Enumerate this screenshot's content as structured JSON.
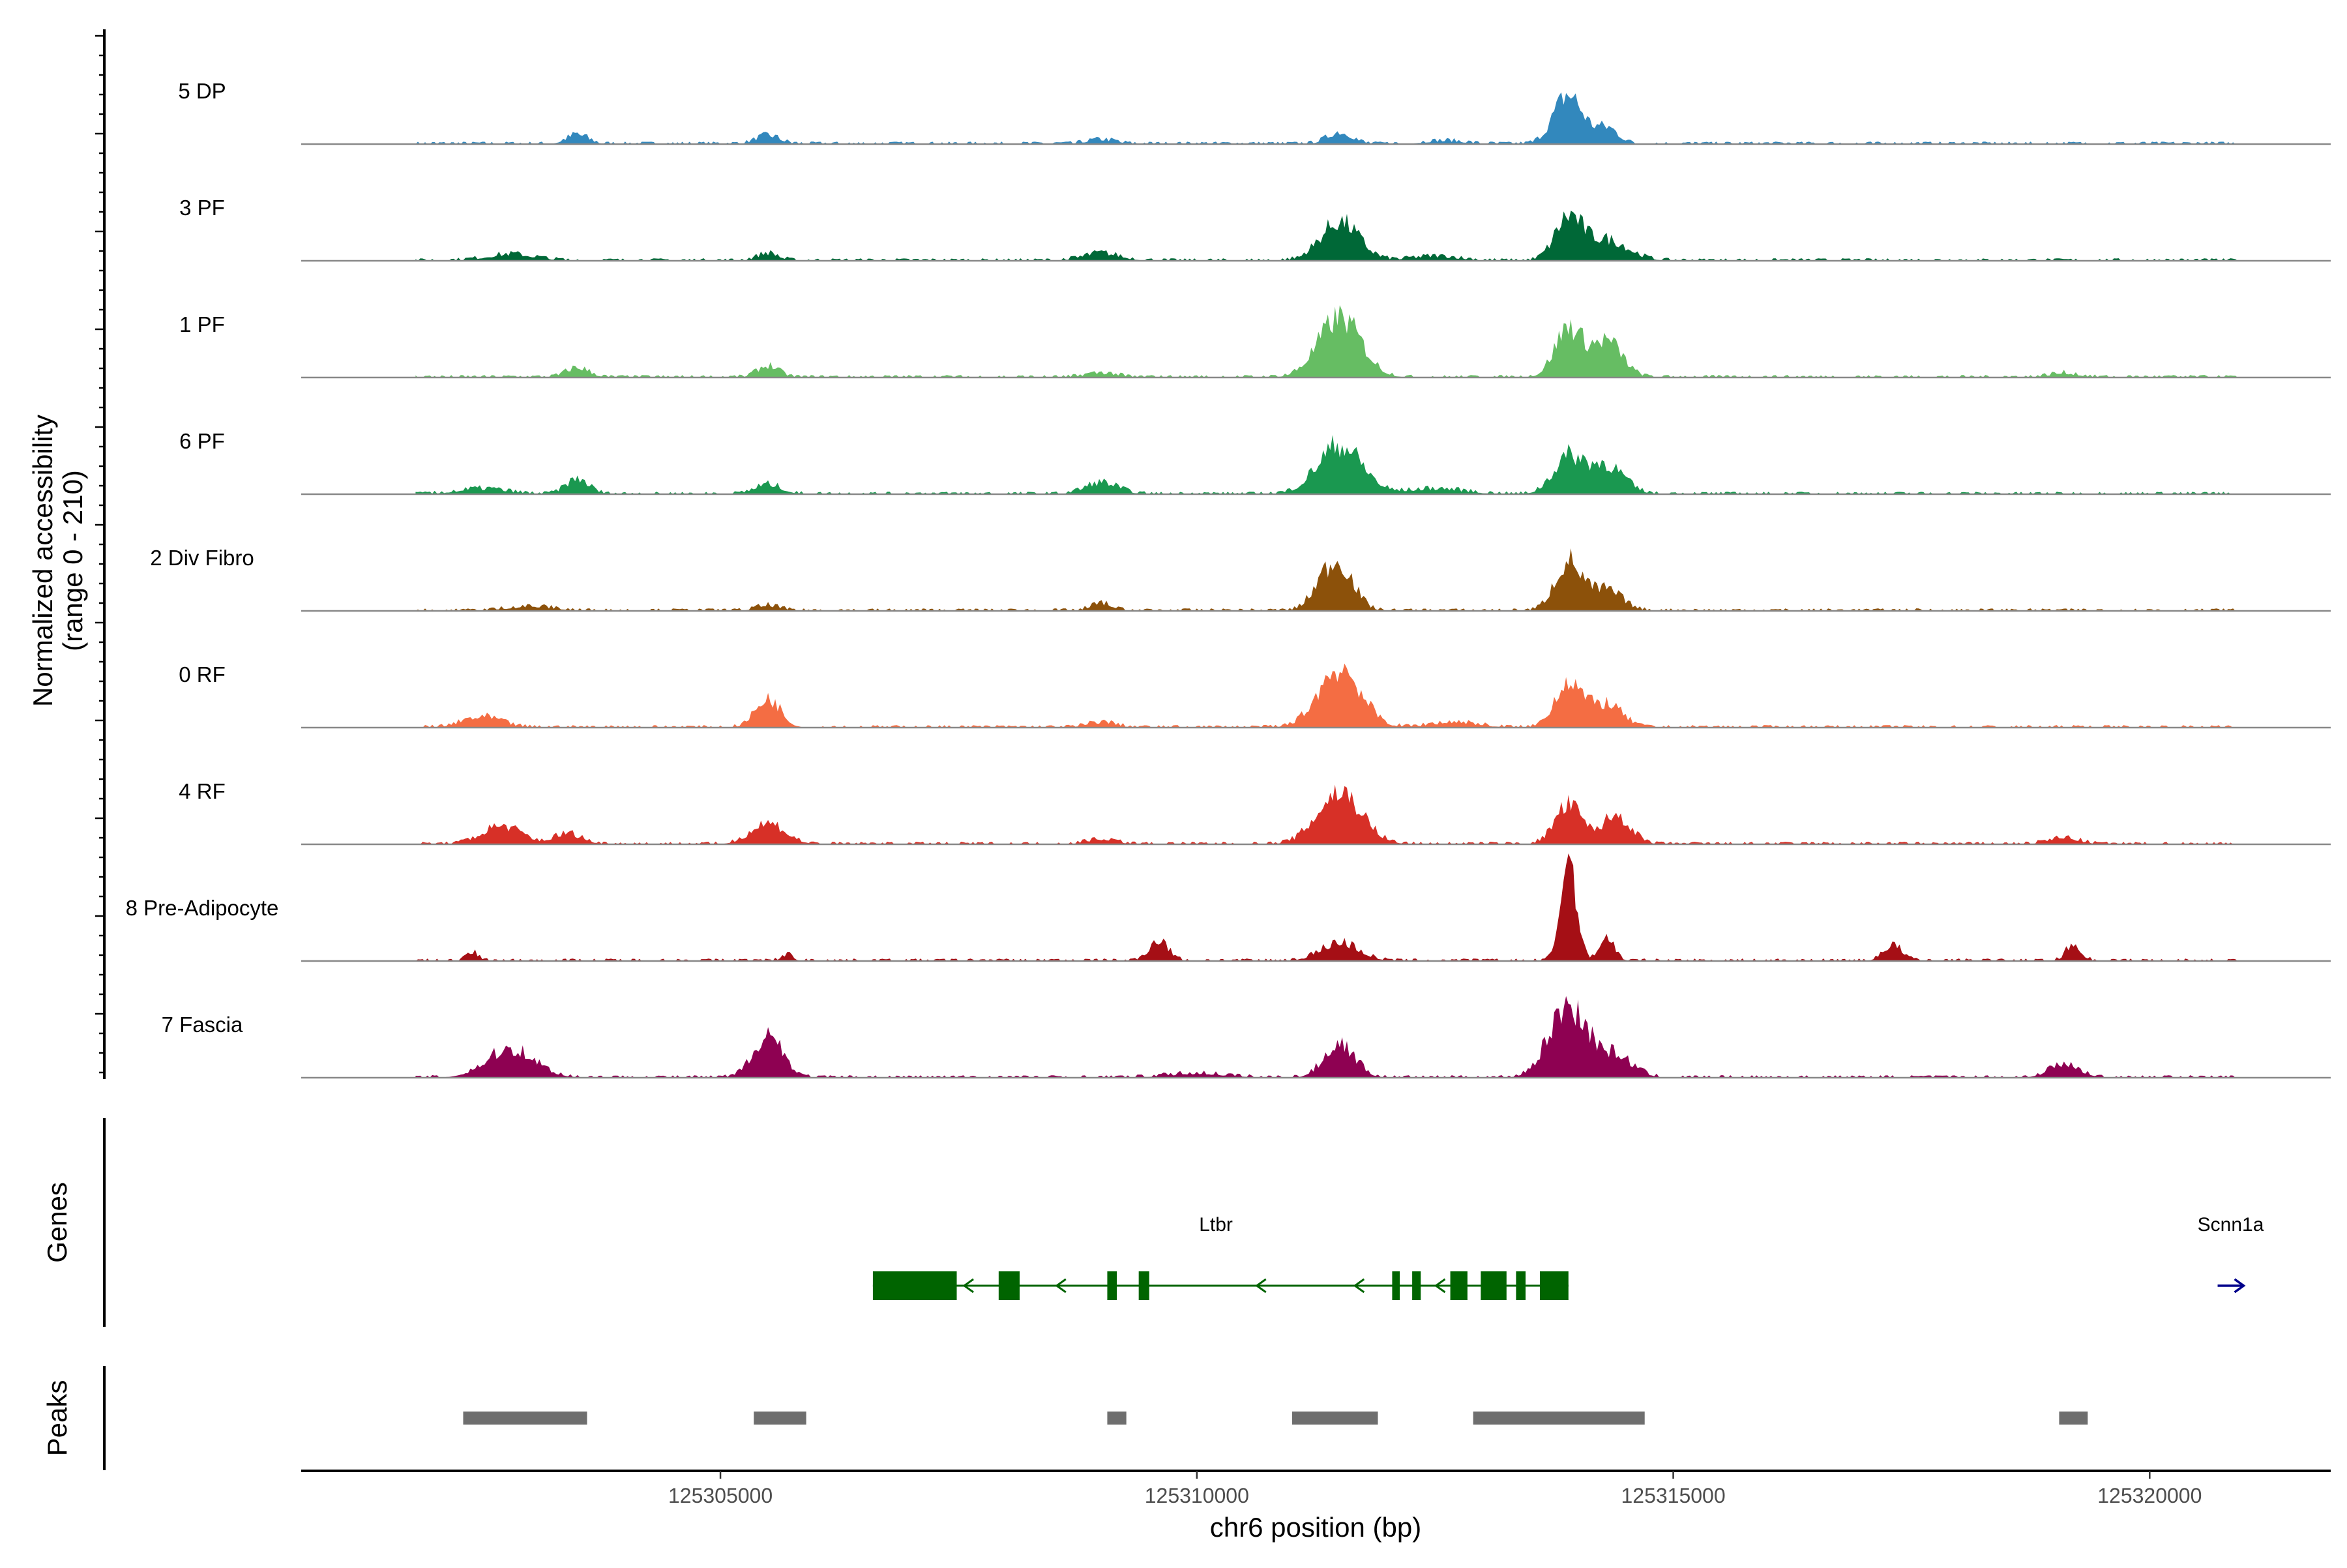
{
  "chart_data": {
    "type": "area",
    "title": "",
    "region": "chr6",
    "xlabel": "chr6 position (bp)",
    "ylabel": "Normalized accessibility",
    "ylabel_range": "(range 0 - 210)",
    "ylim": [
      0,
      210
    ],
    "xlim": [
      125300600,
      125321900
    ],
    "x_ticks": [
      125305000,
      125310000,
      125315000,
      125320000
    ],
    "x_tick_labels": [
      "125305000",
      "125310000",
      "125315000",
      "125320000"
    ],
    "panel_labels": {
      "genes": "Genes",
      "peaks": "Peaks"
    },
    "peak_positions": [
      125303400,
      125305500,
      125309200,
      125311550,
      125313900,
      125314350,
      125319200
    ],
    "tracks": [
      {
        "name": "5 DP",
        "color": "#3288bd",
        "peaks": [
          [
            125303500,
            18,
            110
          ],
          [
            125305500,
            16,
            120
          ],
          [
            125309000,
            8,
            150
          ],
          [
            125311500,
            22,
            130
          ],
          [
            125313900,
            95,
            150
          ],
          [
            125314300,
            30,
            120
          ],
          [
            125312600,
            6,
            200
          ]
        ]
      },
      {
        "name": "3 PF",
        "color": "#006837",
        "peaks": [
          [
            125302800,
            12,
            250
          ],
          [
            125305500,
            14,
            110
          ],
          [
            125309000,
            14,
            190
          ],
          [
            125311500,
            75,
            200
          ],
          [
            125313900,
            80,
            140
          ],
          [
            125314300,
            40,
            220
          ],
          [
            125312500,
            8,
            250
          ]
        ]
      },
      {
        "name": "1 PF",
        "color": "#66bd63",
        "peaks": [
          [
            125303500,
            18,
            120
          ],
          [
            125305500,
            22,
            110
          ],
          [
            125309000,
            8,
            160
          ],
          [
            125311500,
            115,
            220
          ],
          [
            125313900,
            95,
            140
          ],
          [
            125314300,
            70,
            160
          ],
          [
            125319100,
            8,
            150
          ]
        ]
      },
      {
        "name": "6 PF",
        "color": "#1a9850",
        "peaks": [
          [
            125303500,
            28,
            120
          ],
          [
            125305500,
            18,
            140
          ],
          [
            125309000,
            22,
            170
          ],
          [
            125311500,
            95,
            230
          ],
          [
            125313900,
            70,
            160
          ],
          [
            125314300,
            55,
            180
          ],
          [
            125312500,
            10,
            300
          ],
          [
            125302500,
            10,
            250
          ]
        ]
      },
      {
        "name": "2 Div Fibro",
        "color": "#8c510a",
        "peaks": [
          [
            125305500,
            10,
            120
          ],
          [
            125309000,
            14,
            110
          ],
          [
            125311500,
            85,
            150
          ],
          [
            125311300,
            30,
            130
          ],
          [
            125313900,
            95,
            140
          ],
          [
            125314300,
            40,
            160
          ],
          [
            125303000,
            8,
            250
          ]
        ]
      },
      {
        "name": "0 RF",
        "color": "#f46d43",
        "peaks": [
          [
            125302500,
            20,
            200
          ],
          [
            125305500,
            55,
            130
          ],
          [
            125309000,
            10,
            150
          ],
          [
            125311500,
            115,
            220
          ],
          [
            125313900,
            90,
            140
          ],
          [
            125314300,
            45,
            160
          ],
          [
            125312700,
            10,
            250
          ]
        ]
      },
      {
        "name": "4 RF",
        "color": "#d73027",
        "peaks": [
          [
            125302700,
            35,
            200
          ],
          [
            125303400,
            20,
            150
          ],
          [
            125305500,
            40,
            180
          ],
          [
            125309000,
            10,
            150
          ],
          [
            125311500,
            100,
            230
          ],
          [
            125313900,
            75,
            140
          ],
          [
            125314400,
            55,
            150
          ],
          [
            125319100,
            12,
            160
          ]
        ]
      },
      {
        "name": "8 Pre-Adipocyte",
        "color": "#a50f15",
        "peaks": [
          [
            125313900,
            210,
            80
          ],
          [
            125314300,
            45,
            80
          ],
          [
            125309600,
            40,
            100
          ],
          [
            125311500,
            35,
            200
          ],
          [
            125305700,
            12,
            60
          ],
          [
            125302400,
            16,
            60
          ],
          [
            125319200,
            30,
            80
          ],
          [
            125317300,
            30,
            100
          ]
        ]
      },
      {
        "name": "7 Fascia",
        "color": "#8e0152",
        "peaks": [
          [
            125302800,
            55,
            250
          ],
          [
            125305500,
            85,
            150
          ],
          [
            125311500,
            65,
            160
          ],
          [
            125313900,
            140,
            200
          ],
          [
            125314400,
            40,
            180
          ],
          [
            125319100,
            25,
            160
          ],
          [
            125310000,
            8,
            300
          ]
        ]
      }
    ],
    "genes": [
      {
        "name": "Ltbr",
        "start": 125306600,
        "end": 125313900,
        "strand": "-",
        "label_x": 125310200,
        "exons": [
          [
            125306600,
            125307480
          ],
          [
            125307920,
            125308140
          ],
          [
            125309060,
            125309160
          ],
          [
            125309390,
            125309500
          ],
          [
            125312050,
            125312130
          ],
          [
            125312260,
            125312350
          ],
          [
            125312660,
            125312840
          ],
          [
            125312980,
            125313250
          ],
          [
            125313350,
            125313450
          ],
          [
            125313600,
            125313900
          ]
        ]
      },
      {
        "name": "Scnn1a",
        "start": 125320700,
        "end": 125321000,
        "strand": "+",
        "label_x": 125320850,
        "exons": []
      }
    ],
    "peak_regions": [
      [
        125302300,
        125303600
      ],
      [
        125305350,
        125305900
      ],
      [
        125309060,
        125309260
      ],
      [
        125311000,
        125311900
      ],
      [
        125312900,
        125314700
      ],
      [
        125319050,
        125319350
      ]
    ],
    "colors": {
      "gene": "#006400",
      "gene_plus": "#00008b",
      "peak": "#6e6e6e",
      "baseline": "#888888"
    }
  }
}
